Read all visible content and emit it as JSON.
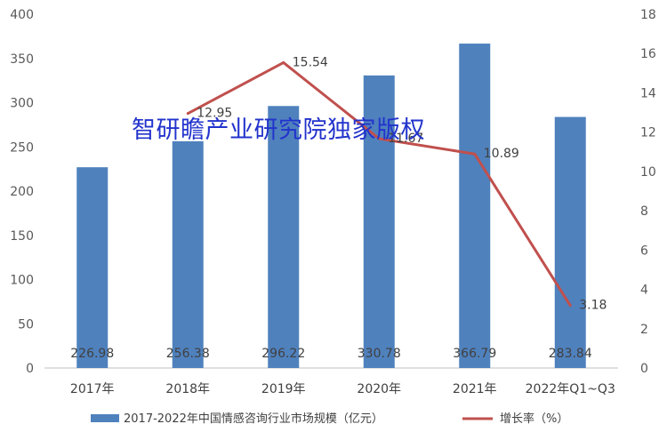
{
  "chart_data": {
    "type": "bar",
    "categories": [
      "2017年",
      "2018年",
      "2019年",
      "2020年",
      "2021年",
      "2022年Q1~Q3"
    ],
    "series": [
      {
        "name": "2017-2022年中国情感咨询行业市场规模（亿元）",
        "type": "bar",
        "axis": "left",
        "values": [
          226.98,
          256.38,
          296.22,
          330.78,
          366.79,
          283.84
        ],
        "labels": [
          "226.98",
          "256.38",
          "296.22",
          "330.78",
          "366.79",
          "283.84"
        ]
      },
      {
        "name": "增长率（%）",
        "type": "line",
        "axis": "right",
        "values": [
          null,
          12.95,
          15.54,
          11.67,
          10.89,
          3.18
        ],
        "labels": [
          "",
          "12.95",
          "15.54",
          "11.67",
          "10.89",
          "3.18"
        ]
      }
    ],
    "y_left": {
      "min": 0,
      "max": 400,
      "ticks": [
        "0",
        "50",
        "100",
        "150",
        "200",
        "250",
        "300",
        "350",
        "400"
      ]
    },
    "y_right": {
      "min": 0,
      "max": 18,
      "ticks": [
        "0",
        "2",
        "4",
        "6",
        "8",
        "10",
        "12",
        "14",
        "16",
        "18"
      ]
    },
    "grid": false,
    "legend_position": "bottom",
    "colors": {
      "bar": "#4f81bd",
      "line": "#c0504d"
    }
  },
  "watermark": "智研瞻产业研究院独家版权"
}
